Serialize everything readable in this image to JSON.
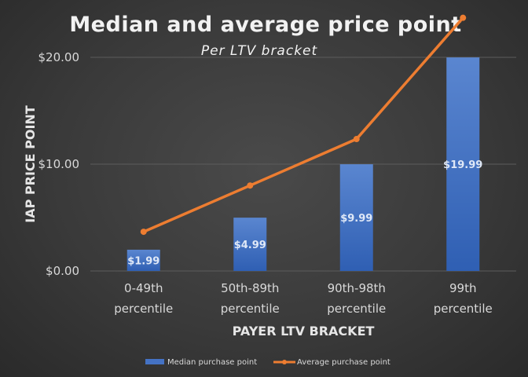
{
  "chart_data": {
    "type": "bar",
    "title": "Median and average price point",
    "subtitle": "Per LTV bracket",
    "xlabel": "PAYER LTV BRACKET",
    "ylabel": "IAP PRICE POINT",
    "categories": [
      [
        "0-49th",
        "percentile"
      ],
      [
        "50th-89th",
        "percentile"
      ],
      [
        "90th-98th",
        "percentile"
      ],
      [
        "99th",
        "percentile"
      ]
    ],
    "yticks": [
      "$0.00",
      "$10.00",
      "$20.00"
    ],
    "ytick_values": [
      0,
      10,
      20
    ],
    "ylim": [
      0,
      20
    ],
    "grid": true,
    "legend_position": "bottom",
    "series": [
      {
        "name": "Median purchase point",
        "type": "bar",
        "color": "#4472c4",
        "values": [
          1.99,
          4.99,
          9.99,
          19.99
        ],
        "labels": [
          "$1.99",
          "$4.99",
          "$9.99",
          "$19.99"
        ]
      },
      {
        "name": "Average purchase point",
        "type": "line",
        "color": "#ed7d31",
        "values": [
          3.67,
          8.0,
          12.35,
          23.7
        ]
      }
    ]
  }
}
